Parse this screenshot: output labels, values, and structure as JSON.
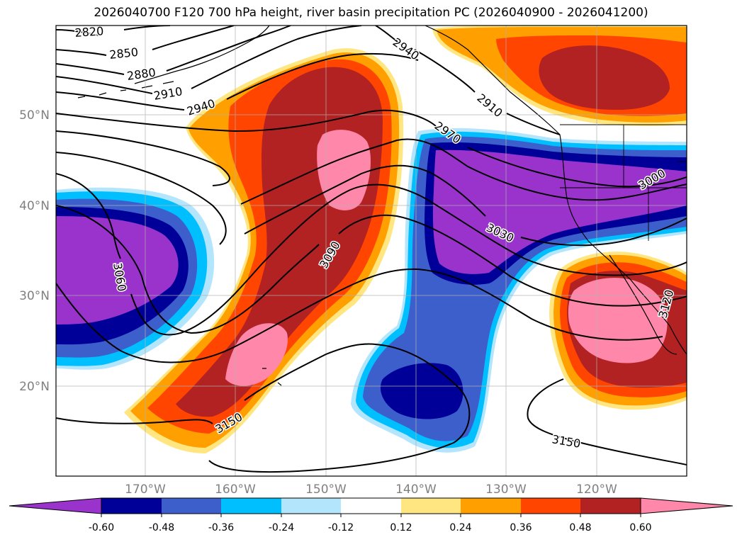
{
  "title": "2026040700 F120 700 hPa height, river basin precipitation PC (2026040900 - 2026041200)",
  "axes": {
    "lon_labels": [
      "170°W",
      "160°W",
      "150°W",
      "140°W",
      "130°W",
      "120°W"
    ],
    "lat_labels": [
      "50°N",
      "40°N",
      "30°N",
      "20°N"
    ],
    "grid": true
  },
  "colorbar": {
    "levels": [
      "-0.60",
      "-0.48",
      "-0.36",
      "-0.24",
      "-0.12",
      "0.12",
      "0.24",
      "0.36",
      "0.48",
      "0.60"
    ],
    "colors": {
      "lt_neg60": "#9933cc",
      "neg60_neg48": "#000099",
      "neg48_neg36": "#3d5fcc",
      "neg36_neg24": "#00bfff",
      "neg24_neg12": "#b3e5fc",
      "neg12_12": "#ffffff",
      "p12_24": "#ffe680",
      "p24_36": "#ffa000",
      "p36_48": "#ff4500",
      "p48_60": "#b22222",
      "gt60": "#ff88aa"
    }
  },
  "contour_labels": [
    "2820",
    "2850",
    "2880",
    "2910",
    "2940",
    "2940",
    "2910",
    "2970",
    "3000",
    "3030",
    "3060",
    "3090",
    "3150",
    "3150",
    "3120"
  ]
}
